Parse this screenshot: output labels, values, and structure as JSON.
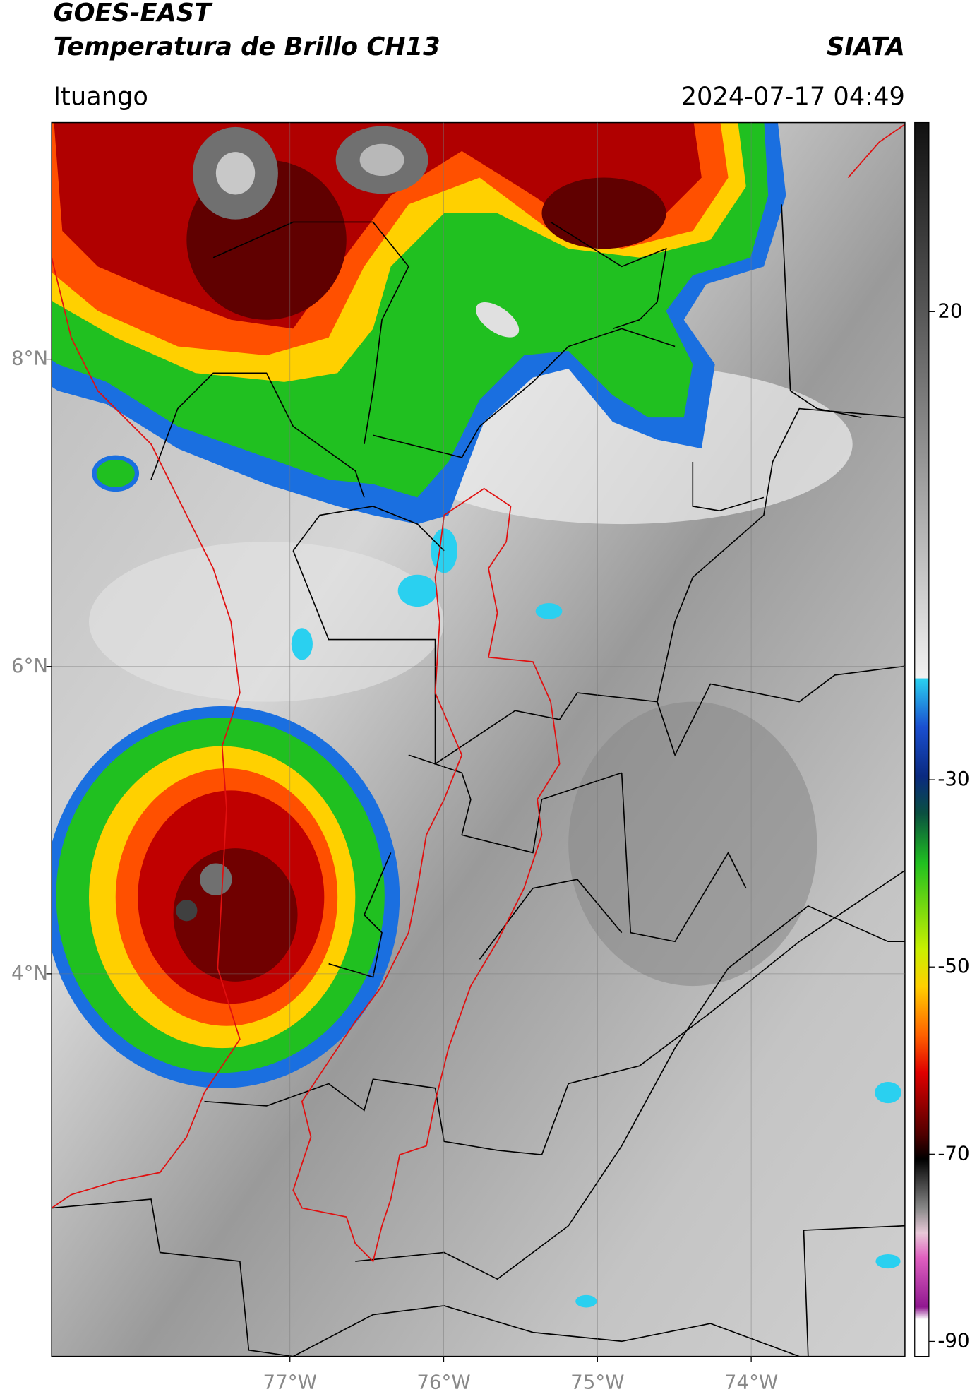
{
  "header": {
    "title": "GOES-EAST",
    "subtitle": "Temperatura de Brillo CH13",
    "source": "SIATA",
    "location": "Ituango",
    "datetime": "2024-07-17 04:49"
  },
  "map": {
    "xlim": [
      -78.55,
      -73.0
    ],
    "ylim": [
      1.51,
      9.54
    ],
    "xticks": [
      {
        "value": -77,
        "label": "77°W"
      },
      {
        "value": -76,
        "label": "76°W"
      },
      {
        "value": -75,
        "label": "75°W"
      },
      {
        "value": -74,
        "label": "74°W"
      }
    ],
    "yticks": [
      {
        "value": 8,
        "label": "8°N"
      },
      {
        "value": 6,
        "label": "6°N"
      },
      {
        "value": 4,
        "label": "4°N"
      }
    ],
    "grid": true
  },
  "colorbar": {
    "lim": [
      -91.6,
      40.2
    ],
    "ticks": [
      20,
      -30,
      -50,
      -70,
      -90
    ]
  }
}
